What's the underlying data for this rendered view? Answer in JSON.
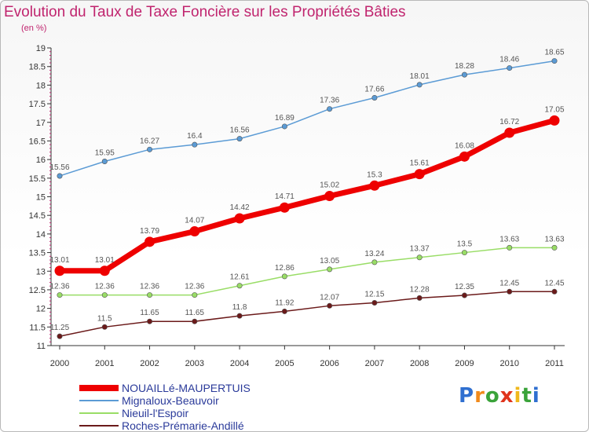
{
  "title": "Evolution du Taux de Taxe Foncière sur les Propriétés Bâties",
  "unit_label": "(en %)",
  "logo": {
    "letters": [
      "P",
      "r",
      "o",
      "x",
      "i",
      "t",
      "i"
    ],
    "colors": [
      "#2f6fd0",
      "#f08a1c",
      "#3aa33a",
      "#e0341c",
      "#f0b81c",
      "#3aa33a",
      "#2f6fd0"
    ]
  },
  "chart_data": {
    "type": "line",
    "title": "Evolution du Taux de Taxe Foncière sur les Propriétés Bâties",
    "ylabel": "(en %)",
    "xlabel": "",
    "ylim": [
      11,
      19
    ],
    "yticks": [
      "11",
      "11.5",
      "12",
      "12.5",
      "13",
      "13.5",
      "14",
      "14.5",
      "15",
      "15.5",
      "16",
      "16.5",
      "17",
      "17.5",
      "18",
      "18.5",
      "19"
    ],
    "x": [
      "2000",
      "2001",
      "2002",
      "2003",
      "2004",
      "2005",
      "2006",
      "2007",
      "2008",
      "2009",
      "2010",
      "2011"
    ],
    "grid": false,
    "legend_position": "bottom-left",
    "series": [
      {
        "name": "Mignaloux-Beauvoir",
        "color": "#5b9bd5",
        "values": [
          15.56,
          15.95,
          16.27,
          16.4,
          16.56,
          16.89,
          17.36,
          17.66,
          18.01,
          18.28,
          18.46,
          18.65
        ],
        "labels": [
          "15.56",
          "15.95",
          "16.27",
          "16.4",
          "16.56",
          "16.89",
          "17.36",
          "17.66",
          "18.01",
          "18.28",
          "18.46",
          "18.65"
        ]
      },
      {
        "name": "NOUAILLé-MAUPERTUIS",
        "color": "#ee0000",
        "values": [
          13.01,
          13.01,
          13.79,
          14.07,
          14.42,
          14.71,
          15.02,
          15.3,
          15.61,
          16.08,
          16.72,
          17.05
        ],
        "labels": [
          "13.01",
          "13.01",
          "13.79",
          "14.07",
          "14.42",
          "14.71",
          "15.02",
          "15.3",
          "15.61",
          "16.08",
          "16.72",
          "17.05"
        ]
      },
      {
        "name": "Nieuil-l'Espoir",
        "color": "#99dd66",
        "values": [
          12.36,
          12.36,
          12.36,
          12.36,
          12.61,
          12.86,
          13.05,
          13.24,
          13.37,
          13.5,
          13.63,
          13.63
        ],
        "labels": [
          "12.36",
          "12.36",
          "12.36",
          "12.36",
          "12.61",
          "12.86",
          "13.05",
          "13.24",
          "13.37",
          "13.5",
          "13.63",
          "13.63"
        ]
      },
      {
        "name": "Roches-Prémarie-Andillé",
        "color": "#6b1a1a",
        "values": [
          11.25,
          11.5,
          11.65,
          11.65,
          11.8,
          11.92,
          12.07,
          12.15,
          12.28,
          12.35,
          12.45,
          12.45
        ],
        "labels": [
          "11.25",
          "11.5",
          "11.65",
          "11.65",
          "11.8",
          "11.92",
          "12.07",
          "12.15",
          "12.28",
          "12.35",
          "12.45",
          "12.45"
        ]
      }
    ],
    "legend": [
      {
        "name": "NOUAILLé-MAUPERTUIS",
        "color": "#ee0000",
        "thick": true
      },
      {
        "name": "Mignaloux-Beauvoir",
        "color": "#5b9bd5",
        "thick": false
      },
      {
        "name": "Nieuil-l'Espoir",
        "color": "#99dd66",
        "thick": false
      },
      {
        "name": "Roches-Prémarie-Andillé",
        "color": "#6b1a1a",
        "thick": false
      }
    ]
  }
}
